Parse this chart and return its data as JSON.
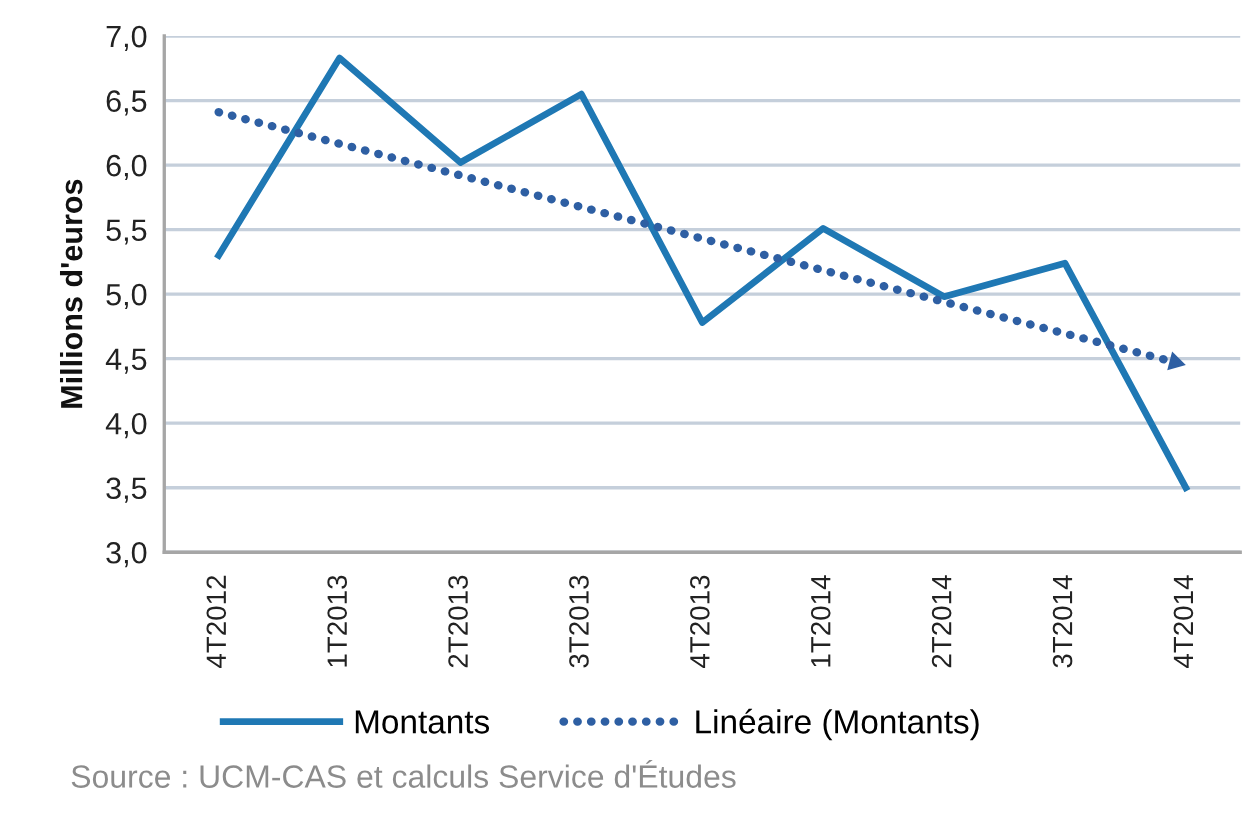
{
  "chart_data": {
    "type": "line",
    "ylabel": "Millions d'euros",
    "categories": [
      "4T2012",
      "1T2013",
      "2T2013",
      "3T2013",
      "4T2013",
      "1T2014",
      "2T2014",
      "3T2014",
      "4T2014"
    ],
    "series": [
      {
        "name": "Montants",
        "color": "#1f78b4",
        "values": [
          5.3,
          6.83,
          6.02,
          6.55,
          4.78,
          5.51,
          4.98,
          5.24,
          3.5
        ],
        "line_style": "solid"
      },
      {
        "name": "Linéaire (Montants)",
        "color": "#2e5fa3",
        "type": "line",
        "x": [
          "4T2012",
          "4T2014"
        ],
        "values": [
          6.41,
          4.45
        ],
        "line_style": "dotted"
      }
    ],
    "ylim": [
      3,
      7
    ],
    "yticks": [
      {
        "value": 3,
        "label": "3,0"
      },
      {
        "value": 3.5,
        "label": "3,5"
      },
      {
        "value": 4,
        "label": "4,0"
      },
      {
        "value": 4.5,
        "label": "4,5"
      },
      {
        "value": 5,
        "label": "5,0"
      },
      {
        "value": 5.5,
        "label": "5,5"
      },
      {
        "value": 6,
        "label": "6,0"
      },
      {
        "value": 6.5,
        "label": "6,5"
      },
      {
        "value": 7,
        "label": "7,0"
      }
    ],
    "grid": "y",
    "legend": "bottom",
    "annotations": [
      "Source : UCM-CAS et calculs Service d'Études"
    ]
  }
}
